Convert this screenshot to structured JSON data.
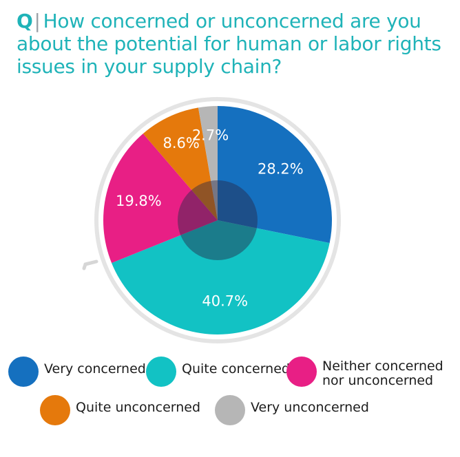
{
  "question": {
    "marker": "Q",
    "text": "How concerned or unconcerned are you about the potential for human or labor rights issues in your supply chain?"
  },
  "chart_data": {
    "type": "pie",
    "categories": [
      "Very concerned",
      "Quite concerned",
      "Neither concerned nor unconcerned",
      "Quite unconcerned",
      "Very unconcerned"
    ],
    "values": [
      28.2,
      40.7,
      19.8,
      8.6,
      2.7
    ],
    "labels": [
      "28.2%",
      "40.7%",
      "19.8%",
      "8.6%",
      "2.7%"
    ],
    "colors": [
      "#1570bf",
      "#12c2c4",
      "#e81f85",
      "#e5790c",
      "#b6b6b6"
    ],
    "legend": [
      {
        "label": "Very concerned",
        "color": "#1570bf"
      },
      {
        "label": "Quite concerned",
        "color": "#12c2c4"
      },
      {
        "label": "Neither concerned nor unconcerned",
        "line1": "Neither concerned",
        "line2": "nor unconcerned",
        "color": "#e81f85"
      },
      {
        "label": "Quite unconcerned",
        "color": "#e5790c"
      },
      {
        "label": "Very unconcerned",
        "color": "#b6b6b6"
      }
    ],
    "legend_position": "bottom"
  }
}
